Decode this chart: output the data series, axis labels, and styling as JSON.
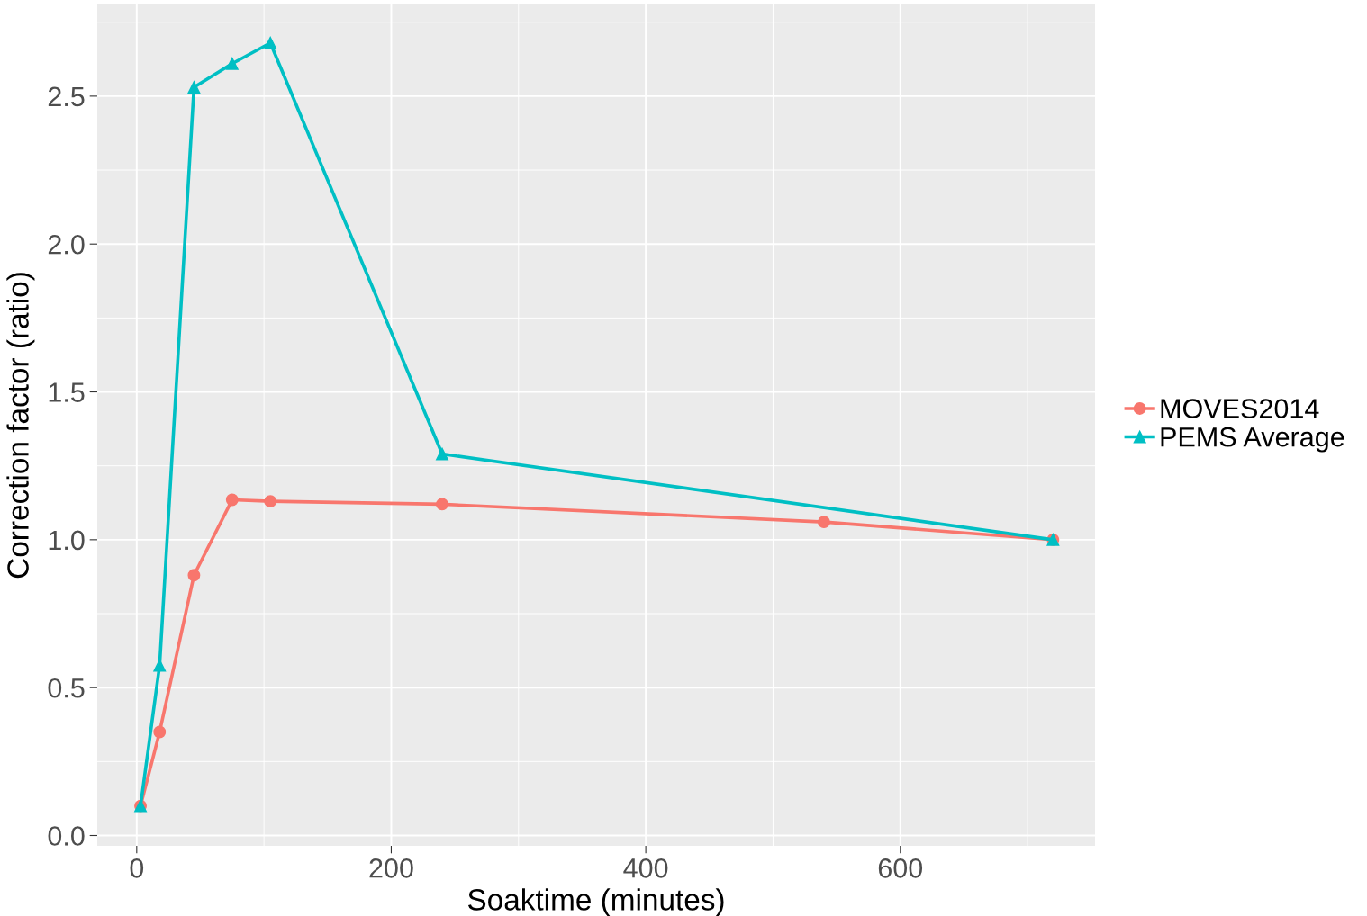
{
  "chart_data": {
    "type": "line",
    "xlabel": "Soaktime (minutes)",
    "ylabel": "Correction factor (ratio)",
    "xlim": [
      -31,
      753
    ],
    "xticks": [
      0,
      200,
      400,
      600
    ],
    "ylim": [
      -0.035,
      2.81
    ],
    "yticks": [
      {
        "value": 0,
        "label": "0.0"
      },
      0.5,
      {
        "value": 1,
        "label": "1.0"
      },
      1.5,
      {
        "value": 2,
        "label": "2.0"
      },
      2.5
    ],
    "grid": true,
    "legend": "right",
    "line_style": "solid",
    "series": [
      {
        "name": "MOVES2014",
        "color": "#f8766d",
        "marker": "circle",
        "x": [
          3,
          18,
          45,
          75,
          105,
          240,
          540,
          720
        ],
        "values": [
          0.1,
          0.35,
          0.88,
          1.135,
          1.13,
          1.12,
          1.06,
          1.0
        ]
      },
      {
        "name": "PEMS Average",
        "color": "#00bfc4",
        "marker": "triangle",
        "x": [
          3,
          18,
          45,
          75,
          105,
          240,
          720
        ],
        "values": [
          0.1,
          0.575,
          2.53,
          2.61,
          2.68,
          1.29,
          1.0
        ]
      }
    ]
  }
}
